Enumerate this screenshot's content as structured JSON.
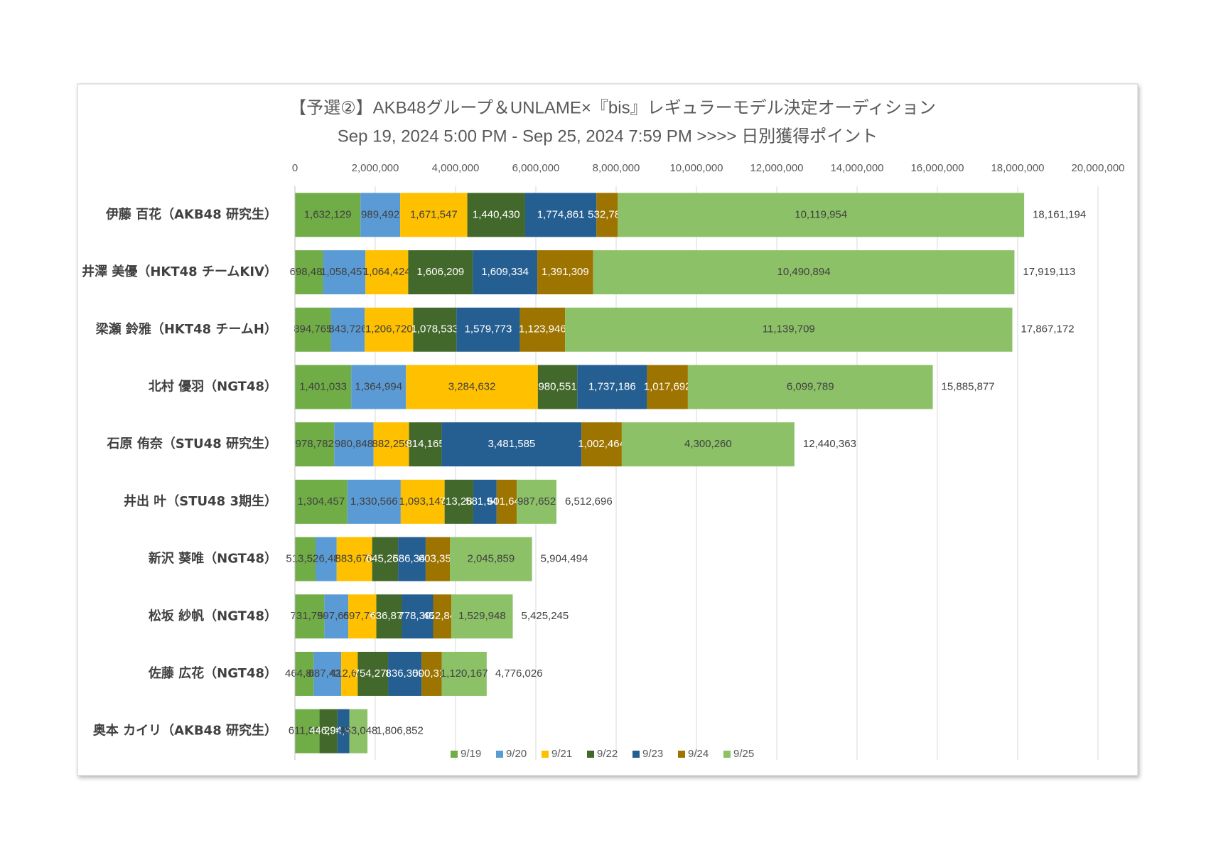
{
  "chart_data": {
    "type": "stacked-bar-horizontal",
    "title": "【予選②】AKB48グループ＆UNLAME×『bis』レギュラーモデル決定オーディション",
    "subtitle": "Sep 19, 2024 5:00 PM - Sep 25, 2024 7:59 PM  >>>> 日別獲得ポイント",
    "categories": [
      "伊藤 百花（AKB48 研究生）",
      "井澤 美優（HKT48 チームKIV）",
      "梁瀬 鈴雅（HKT48 チームH）",
      "北村 優羽（NGT48）",
      "石原 侑奈（STU48 研究生）",
      "井出 叶（STU48 3期生）",
      "新沢 葵唯（NGT48）",
      "松坂 紗帆（NGT48）",
      "佐藤 広花（NGT48）",
      "奥本 カイリ（AKB48 研究生）"
    ],
    "series": [
      {
        "name": "9/19",
        "color": "#70ad47",
        "values": [
          1632129,
          698486,
          894765,
          1401033,
          978782,
          1304457,
          513526,
          731794,
          464887,
          611862
        ],
        "value_labels": [
          "1,632,129",
          "698,486",
          "894,765",
          "1,401,033",
          "978,782",
          "1,304,457",
          "513,526",
          "731,794",
          "464,887",
          "611,862"
        ]
      },
      {
        "name": "9/20",
        "color": "#5b9bd5",
        "values": [
          989492,
          1058457,
          843726,
          1364994,
          980848,
          1330566,
          526488,
          597659,
          687422,
          null
        ],
        "value_labels": [
          "989,492",
          "1,058,457",
          "843,726",
          "1,364,994",
          "980,848",
          "1,330,566",
          "526,488",
          "597,659",
          "687,422",
          null
        ]
      },
      {
        "name": "9/21",
        "color": "#ffc000",
        "values": [
          1671547,
          1064424,
          1206720,
          3284632,
          882259,
          1093142,
          883670,
          697736,
          412645,
          null
        ],
        "value_labels": [
          "1,671,547",
          "1,064,424",
          "1,206,720",
          "3,284,632",
          "882,259",
          "1,093,142",
          "883,670",
          "697,736",
          "412,645",
          null
        ]
      },
      {
        "name": "9/22",
        "color": "#43682b",
        "values": [
          1440430,
          1606209,
          1078533,
          980551,
          814165,
          713283,
          645254,
          636872,
          754278,
          446995
        ],
        "value_labels": [
          "1,440,430",
          "1,606,209",
          "1,078,533",
          "980,551",
          "814,165",
          "713,283",
          "645,254",
          "636,872",
          "754,278",
          "446,995"
        ]
      },
      {
        "name": "9/23",
        "color": "#255e91",
        "values": [
          1774861,
          1609334,
          1579773,
          1737186,
          3481585,
          581948,
          686346,
          778392,
          836309,
          294947
        ],
        "value_labels": [
          "1,774,861",
          "1,609,334",
          "1,579,773",
          "1,737,186",
          "3,481,585",
          "581,948",
          "686,346",
          "778,392",
          "836,309",
          "294,947"
        ]
      },
      {
        "name": "9/24",
        "color": "#9e7400",
        "values": [
          532781,
          1391309,
          1123946,
          1017692,
          1002464,
          501648,
          603351,
          452844,
          500318,
          null
        ],
        "value_labels": [
          "532,781",
          "1,391,309",
          "1,123,946",
          "1,017,692",
          "1,002,464",
          "501,648",
          "603,351",
          "452,844",
          "500,318",
          null
        ]
      },
      {
        "name": "9/25",
        "color": "#8cc168",
        "values": [
          10119954,
          10490894,
          11139709,
          6099789,
          4300260,
          987652,
          2045859,
          1529948,
          1120167,
          453048
        ],
        "value_labels": [
          "10,119,954",
          "10,490,894",
          "11,139,709",
          "6,099,789",
          "4,300,260",
          "987,652",
          "2,045,859",
          "1,529,948",
          "1,120,167",
          "453,048"
        ]
      }
    ],
    "totals": [
      18161194,
      17919113,
      17867172,
      15885877,
      12440363,
      6512696,
      5904494,
      5425245,
      4776026,
      1806852
    ],
    "total_labels": [
      "18,161,194",
      "17,919,113",
      "17,867,172",
      "15,885,877",
      "12,440,363",
      "6,512,696",
      "5,904,494",
      "5,425,245",
      "4,776,026",
      "1,806,852"
    ],
    "xlim": [
      0,
      20000000
    ],
    "xticks": [
      0,
      {
        "value": 2000000,
        "label": "2,000,000"
      },
      {
        "value": 4000000,
        "label": "4,000,000"
      },
      {
        "value": 6000000,
        "label": "6,000,000"
      },
      {
        "value": 8000000,
        "label": "8,000,000"
      },
      {
        "value": 10000000,
        "label": "10,000,000"
      },
      {
        "value": 12000000,
        "label": "12,000,000"
      },
      {
        "value": 14000000,
        "label": "14,000,000"
      },
      {
        "value": 16000000,
        "label": "16,000,000"
      },
      {
        "value": 18000000,
        "label": "18,000,000"
      },
      {
        "value": 20000000,
        "label": "20,000,000"
      }
    ],
    "grid": true,
    "legend": "bottom"
  }
}
